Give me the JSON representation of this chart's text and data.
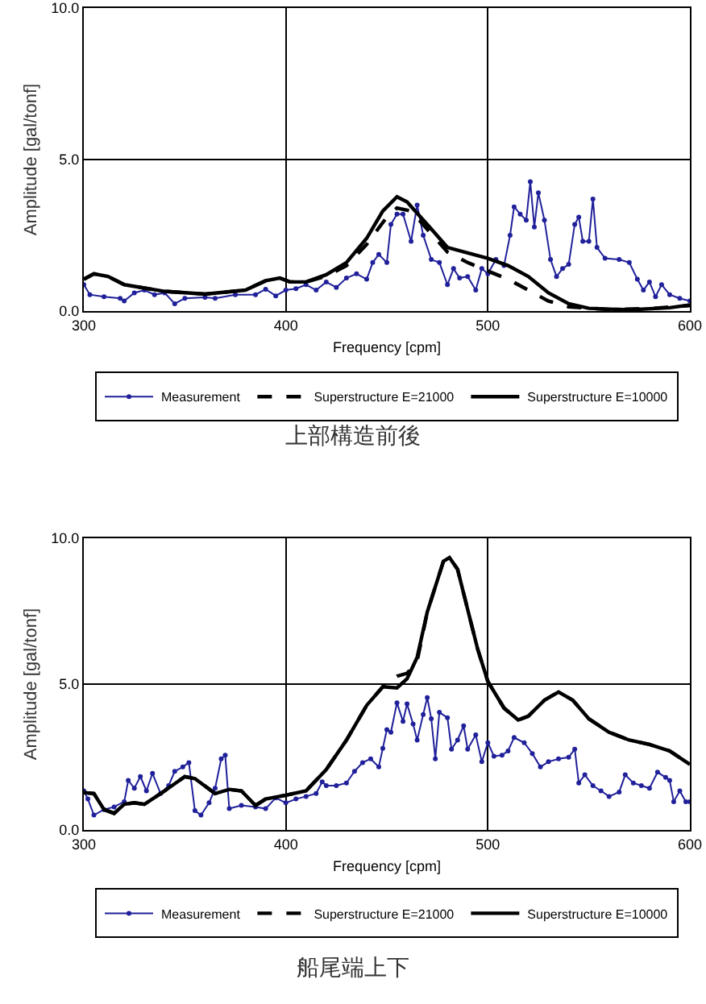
{
  "chart_data": [
    {
      "type": "line",
      "title": "上部構造前後",
      "xlabel": "Frequency [cpm]",
      "ylabel": "Amplitude [gal/tonf]",
      "xlim": [
        300,
        600
      ],
      "xticks": [
        300,
        400,
        500,
        600
      ],
      "ylim": [
        0,
        10
      ],
      "yticks": [
        {
          "value": 0,
          "label": "0.0"
        },
        {
          "value": 5,
          "label": "5.0"
        },
        {
          "value": 10,
          "label": "10.0"
        }
      ],
      "grid": true,
      "legend": "bottom",
      "series": [
        {
          "name": "Measurement",
          "color": "#20209a",
          "marker": "circle",
          "line_style": "solid",
          "x": [
            300,
            303,
            310,
            318,
            320,
            325,
            330,
            335,
            340,
            345,
            350,
            360,
            365,
            375,
            385,
            390,
            395,
            400,
            405,
            410,
            415,
            420,
            425,
            430,
            435,
            440,
            443,
            446,
            450,
            452,
            455,
            458,
            462,
            465,
            468,
            472,
            476,
            480,
            483,
            486,
            490,
            494,
            497,
            500,
            504,
            508,
            511,
            513,
            516,
            519,
            521,
            523,
            525,
            528,
            531,
            534,
            537,
            540,
            543,
            545,
            547,
            550,
            552,
            554,
            558,
            565,
            570,
            574,
            577,
            580,
            583,
            586,
            590,
            595,
            600
          ],
          "values": [
            0.87,
            0.54,
            0.47,
            0.42,
            0.33,
            0.6,
            0.69,
            0.54,
            0.6,
            0.24,
            0.42,
            0.45,
            0.42,
            0.54,
            0.54,
            0.72,
            0.5,
            0.69,
            0.74,
            0.87,
            0.69,
            0.96,
            0.78,
            1.09,
            1.23,
            1.05,
            1.6,
            1.87,
            1.6,
            2.86,
            3.2,
            3.2,
            2.3,
            3.5,
            2.5,
            1.7,
            1.6,
            0.87,
            1.4,
            1.09,
            1.14,
            0.69,
            1.4,
            1.23,
            1.7,
            1.5,
            2.5,
            3.44,
            3.2,
            3.0,
            4.27,
            2.77,
            3.9,
            3.0,
            1.7,
            1.14,
            1.4,
            1.54,
            2.86,
            3.1,
            2.3,
            2.3,
            3.7,
            2.1,
            1.74,
            1.7,
            1.6,
            1.05,
            0.69,
            0.96,
            0.47,
            0.87,
            0.54,
            0.42,
            0.33
          ]
        },
        {
          "name": "Superstructure E=21000",
          "color": "#000000",
          "marker": "none",
          "line_style": "dashed",
          "x": [
            300,
            305,
            312,
            320,
            340,
            360,
            380,
            390,
            397,
            402,
            410,
            420,
            430,
            440,
            450,
            455,
            462,
            470,
            480,
            490,
            500,
            510,
            520,
            530,
            540,
            560,
            580,
            600
          ],
          "values": [
            1.05,
            1.23,
            1.14,
            0.87,
            0.65,
            0.56,
            0.69,
            1.0,
            1.09,
            0.96,
            0.96,
            1.15,
            1.5,
            2.2,
            3.1,
            3.4,
            3.3,
            2.7,
            1.95,
            1.6,
            1.32,
            1.05,
            0.69,
            0.33,
            0.14,
            0.05,
            0.08,
            0.18
          ]
        },
        {
          "name": "Superstructure E=10000",
          "color": "#000000",
          "marker": "none",
          "line_style": "solid",
          "x": [
            300,
            305,
            312,
            320,
            340,
            360,
            380,
            390,
            397,
            402,
            410,
            420,
            430,
            440,
            448,
            455,
            460,
            470,
            480,
            490,
            500,
            510,
            520,
            530,
            540,
            550,
            570,
            590,
            600
          ],
          "values": [
            1.05,
            1.23,
            1.14,
            0.87,
            0.65,
            0.56,
            0.69,
            1.0,
            1.09,
            0.96,
            0.96,
            1.2,
            1.6,
            2.4,
            3.3,
            3.77,
            3.6,
            2.86,
            2.1,
            1.92,
            1.74,
            1.5,
            1.14,
            0.6,
            0.24,
            0.09,
            0.04,
            0.11,
            0.2
          ]
        }
      ]
    },
    {
      "type": "line",
      "title": "船尾端上下",
      "xlabel": "Frequency [cpm]",
      "ylabel": "Amplitude [gal/tonf]",
      "xlim": [
        300,
        600
      ],
      "xticks": [
        300,
        400,
        500,
        600
      ],
      "ylim": [
        0,
        10
      ],
      "yticks": [
        {
          "value": 0,
          "label": "0.0"
        },
        {
          "value": 5,
          "label": "5.0"
        },
        {
          "value": 10,
          "label": "10.0"
        }
      ],
      "grid": true,
      "legend": "bottom",
      "series": [
        {
          "name": "Measurement",
          "color": "#20209a",
          "marker": "circle",
          "line_style": "solid",
          "x": [
            300,
            302,
            305,
            310,
            315,
            320,
            322,
            325,
            328,
            331,
            334,
            338,
            342,
            345,
            349,
            352,
            355,
            358,
            362,
            365,
            368,
            370,
            372,
            378,
            385,
            390,
            395,
            400,
            405,
            410,
            415,
            418,
            420,
            425,
            430,
            434,
            438,
            442,
            446,
            448,
            450,
            452,
            455,
            458,
            460,
            463,
            465,
            468,
            470,
            472,
            474,
            476,
            480,
            482,
            485,
            488,
            490,
            494,
            497,
            500,
            503,
            507,
            510,
            513,
            518,
            522,
            526,
            530,
            535,
            540,
            543,
            545,
            548,
            552,
            556,
            560,
            565,
            568,
            572,
            576,
            580,
            584,
            588,
            590,
            592,
            595,
            598,
            600
          ],
          "values": [
            1.34,
            1.06,
            0.51,
            0.7,
            0.79,
            0.97,
            1.7,
            1.43,
            1.83,
            1.34,
            1.94,
            1.25,
            1.52,
            2.01,
            2.16,
            2.31,
            0.66,
            0.51,
            0.93,
            1.43,
            2.44,
            2.56,
            0.73,
            0.84,
            0.79,
            0.73,
            1.1,
            0.93,
            1.06,
            1.15,
            1.25,
            1.65,
            1.52,
            1.52,
            1.61,
            2.01,
            2.31,
            2.44,
            2.16,
            2.8,
            3.44,
            3.35,
            4.36,
            3.72,
            4.32,
            3.63,
            3.08,
            3.96,
            4.54,
            3.81,
            2.44,
            4.03,
            3.85,
            2.77,
            3.08,
            3.57,
            2.77,
            3.26,
            2.34,
            2.99,
            2.53,
            2.56,
            2.71,
            3.17,
            2.99,
            2.62,
            2.16,
            2.34,
            2.44,
            2.49,
            2.77,
            1.61,
            1.89,
            1.52,
            1.34,
            1.15,
            1.3,
            1.89,
            1.61,
            1.52,
            1.43,
            1.98,
            1.8,
            1.7,
            0.97,
            1.34,
            0.97,
            0.97
          ]
        },
        {
          "name": "Superstructure E=21000",
          "color": "#000000",
          "marker": "none",
          "line_style": "dashed",
          "x": [
            300,
            305,
            310,
            315,
            320,
            325,
            330,
            340,
            350,
            355,
            365,
            372,
            378,
            385,
            390,
            400,
            410,
            420,
            430,
            440,
            448,
            455,
            460,
            465,
            470,
            478,
            481,
            485,
            490,
            495,
            500,
            508,
            515,
            520,
            528,
            535,
            542,
            550,
            560,
            570,
            580,
            590,
            600
          ],
          "values": [
            1.28,
            1.25,
            0.7,
            0.57,
            0.88,
            0.93,
            0.88,
            1.34,
            1.83,
            1.76,
            1.25,
            1.39,
            1.34,
            0.84,
            1.06,
            1.19,
            1.34,
            2.07,
            3.08,
            4.27,
            4.91,
            5.27,
            5.37,
            5.79,
            7.47,
            9.21,
            9.34,
            8.94,
            7.56,
            6.19,
            5.09,
            4.18,
            3.77,
            3.9,
            4.45,
            4.73,
            4.45,
            3.81,
            3.35,
            3.08,
            2.93,
            2.71,
            2.25
          ]
        },
        {
          "name": "Superstructure E=10000",
          "color": "#000000",
          "marker": "none",
          "line_style": "solid",
          "x": [
            300,
            305,
            310,
            315,
            320,
            325,
            330,
            340,
            350,
            355,
            365,
            372,
            378,
            385,
            390,
            400,
            410,
            420,
            430,
            440,
            448,
            455,
            460,
            465,
            470,
            478,
            481,
            485,
            490,
            495,
            500,
            508,
            515,
            520,
            528,
            535,
            542,
            550,
            560,
            570,
            580,
            590,
            600
          ],
          "values": [
            1.28,
            1.25,
            0.7,
            0.57,
            0.88,
            0.93,
            0.88,
            1.34,
            1.83,
            1.76,
            1.25,
            1.39,
            1.34,
            0.84,
            1.06,
            1.19,
            1.34,
            2.07,
            3.08,
            4.27,
            4.91,
            4.87,
            5.18,
            5.92,
            7.47,
            9.21,
            9.34,
            8.94,
            7.56,
            6.19,
            5.09,
            4.18,
            3.77,
            3.9,
            4.45,
            4.73,
            4.45,
            3.81,
            3.35,
            3.08,
            2.93,
            2.71,
            2.25
          ]
        }
      ]
    }
  ]
}
